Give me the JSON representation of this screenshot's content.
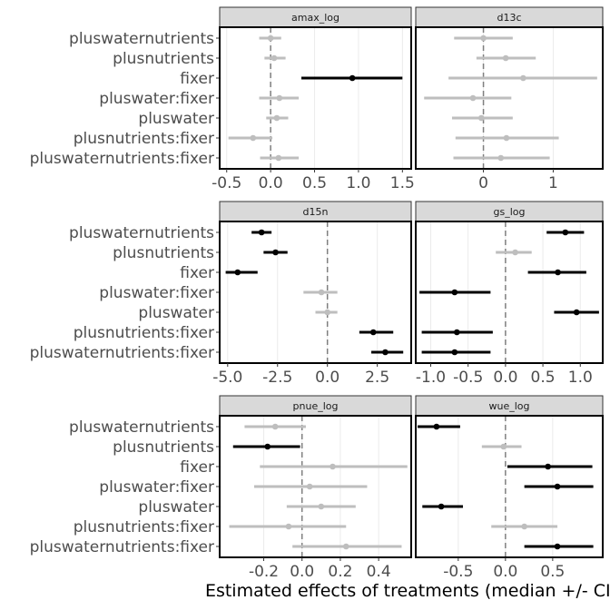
{
  "chart_data": {
    "type": "forest",
    "xlabel": "Estimated effects of treatments (median +/- CI)",
    "ylabel": "",
    "categories": [
      "pluswaternutrients",
      "plusnutrients",
      "fixer",
      "pluswater:fixer",
      "pluswater",
      "plusnutrients:fixer",
      "pluswaternutrients:fixer"
    ],
    "colors": {
      "significant": "#000000",
      "not_significant": "#bebebe",
      "zero_line": "#7f7f7f",
      "strip_fill": "#d9d9d9"
    },
    "panels": [
      {
        "name": "amax_log",
        "xlim": [
          -0.58,
          1.6
        ],
        "xticks": [
          -0.5,
          0.0,
          0.5,
          1.0,
          1.5
        ],
        "xtick_labels": [
          "-0.5",
          "0.0",
          "0.5",
          "1.0",
          "1.5"
        ],
        "estimates": [
          {
            "term": "pluswaternutrients",
            "median": 0.0,
            "lower": -0.13,
            "upper": 0.12,
            "significant": false
          },
          {
            "term": "plusnutrients",
            "median": 0.04,
            "lower": -0.07,
            "upper": 0.17,
            "significant": false
          },
          {
            "term": "fixer",
            "median": 0.93,
            "lower": 0.35,
            "upper": 1.5,
            "significant": true
          },
          {
            "term": "pluswater:fixer",
            "median": 0.1,
            "lower": -0.13,
            "upper": 0.32,
            "significant": false
          },
          {
            "term": "pluswater",
            "median": 0.07,
            "lower": -0.05,
            "upper": 0.2,
            "significant": false
          },
          {
            "term": "plusnutrients:fixer",
            "median": -0.2,
            "lower": -0.48,
            "upper": 0.02,
            "significant": false
          },
          {
            "term": "pluswaternutrients:fixer",
            "median": 0.09,
            "lower": -0.12,
            "upper": 0.32,
            "significant": false
          }
        ]
      },
      {
        "name": "d13c",
        "xlim": [
          -0.97,
          1.71
        ],
        "xticks": [
          0,
          1
        ],
        "xtick_labels": [
          "0",
          "1"
        ],
        "estimates": [
          {
            "term": "pluswaternutrients",
            "median": 0.0,
            "lower": -0.42,
            "upper": 0.42,
            "significant": false
          },
          {
            "term": "plusnutrients",
            "median": 0.32,
            "lower": -0.1,
            "upper": 0.75,
            "significant": false
          },
          {
            "term": "fixer",
            "median": 0.57,
            "lower": -0.5,
            "upper": 1.63,
            "significant": false
          },
          {
            "term": "pluswater:fixer",
            "median": -0.15,
            "lower": -0.85,
            "upper": 0.4,
            "significant": false
          },
          {
            "term": "pluswater",
            "median": -0.03,
            "lower": -0.45,
            "upper": 0.42,
            "significant": false
          },
          {
            "term": "plusnutrients:fixer",
            "median": 0.33,
            "lower": -0.4,
            "upper": 1.08,
            "significant": false
          },
          {
            "term": "pluswaternutrients:fixer",
            "median": 0.25,
            "lower": -0.43,
            "upper": 0.95,
            "significant": false
          }
        ]
      },
      {
        "name": "d15n",
        "xlim": [
          -5.4,
          4.2
        ],
        "xticks": [
          -5.0,
          -2.5,
          0.0,
          2.5
        ],
        "xtick_labels": [
          "-5.0",
          "-2.5",
          "0.0",
          "2.5"
        ],
        "estimates": [
          {
            "term": "pluswaternutrients",
            "median": -3.3,
            "lower": -3.8,
            "upper": -2.8,
            "significant": true
          },
          {
            "term": "plusnutrients",
            "median": -2.6,
            "lower": -3.2,
            "upper": -2.0,
            "significant": true
          },
          {
            "term": "fixer",
            "median": -4.5,
            "lower": -5.1,
            "upper": -3.5,
            "significant": true
          },
          {
            "term": "pluswater:fixer",
            "median": -0.3,
            "lower": -1.2,
            "upper": 0.5,
            "significant": false
          },
          {
            "term": "pluswater",
            "median": 0.0,
            "lower": -0.6,
            "upper": 0.5,
            "significant": false
          },
          {
            "term": "plusnutrients:fixer",
            "median": 2.3,
            "lower": 1.6,
            "upper": 3.3,
            "significant": true
          },
          {
            "term": "pluswaternutrients:fixer",
            "median": 2.9,
            "lower": 2.2,
            "upper": 3.8,
            "significant": true
          }
        ]
      },
      {
        "name": "gs_log",
        "xlim": [
          -1.2,
          1.3
        ],
        "xticks": [
          -1.0,
          -0.5,
          0.0,
          0.5,
          1.0
        ],
        "xtick_labels": [
          "-1.0",
          "-0.5",
          "0.0",
          "0.5",
          "1.0"
        ],
        "estimates": [
          {
            "term": "pluswaternutrients",
            "median": 0.8,
            "lower": 0.55,
            "upper": 1.05,
            "significant": true
          },
          {
            "term": "plusnutrients",
            "median": 0.13,
            "lower": -0.13,
            "upper": 0.35,
            "significant": false
          },
          {
            "term": "fixer",
            "median": 0.7,
            "lower": 0.3,
            "upper": 1.08,
            "significant": true
          },
          {
            "term": "pluswater:fixer",
            "median": -0.68,
            "lower": -1.15,
            "upper": -0.2,
            "significant": true
          },
          {
            "term": "pluswater",
            "median": 0.95,
            "lower": 0.65,
            "upper": 1.25,
            "significant": true
          },
          {
            "term": "plusnutrients:fixer",
            "median": -0.65,
            "lower": -1.12,
            "upper": -0.17,
            "significant": true
          },
          {
            "term": "pluswaternutrients:fixer",
            "median": -0.68,
            "lower": -1.12,
            "upper": -0.2,
            "significant": true
          }
        ]
      },
      {
        "name": "pnue_log",
        "xlim": [
          -0.43,
          0.57
        ],
        "xticks": [
          -0.2,
          0.0,
          0.2,
          0.4
        ],
        "xtick_labels": [
          "-0.2",
          "0.0",
          "0.2",
          "0.4"
        ],
        "estimates": [
          {
            "term": "pluswaternutrients",
            "median": -0.14,
            "lower": -0.3,
            "upper": 0.02,
            "significant": false
          },
          {
            "term": "plusnutrients",
            "median": -0.18,
            "lower": -0.36,
            "upper": -0.01,
            "significant": true
          },
          {
            "term": "fixer",
            "median": 0.16,
            "lower": -0.22,
            "upper": 0.55,
            "significant": false
          },
          {
            "term": "pluswater:fixer",
            "median": 0.04,
            "lower": -0.25,
            "upper": 0.34,
            "significant": false
          },
          {
            "term": "pluswater",
            "median": 0.1,
            "lower": -0.08,
            "upper": 0.28,
            "significant": false
          },
          {
            "term": "plusnutrients:fixer",
            "median": -0.07,
            "lower": -0.38,
            "upper": 0.23,
            "significant": false
          },
          {
            "term": "pluswaternutrients:fixer",
            "median": 0.23,
            "lower": -0.05,
            "upper": 0.52,
            "significant": false
          }
        ]
      },
      {
        "name": "wue_log",
        "xlim": [
          -0.95,
          1.03
        ],
        "xticks": [
          -0.5,
          0.0,
          0.5
        ],
        "xtick_labels": [
          "-0.5",
          "0.0",
          "0.5"
        ],
        "estimates": [
          {
            "term": "pluswaternutrients",
            "median": -0.73,
            "lower": -0.93,
            "upper": -0.48,
            "significant": true
          },
          {
            "term": "plusnutrients",
            "median": -0.02,
            "lower": -0.25,
            "upper": 0.17,
            "significant": false
          },
          {
            "term": "fixer",
            "median": 0.45,
            "lower": 0.02,
            "upper": 0.92,
            "significant": true
          },
          {
            "term": "pluswater:fixer",
            "median": 0.55,
            "lower": 0.2,
            "upper": 0.93,
            "significant": true
          },
          {
            "term": "pluswater",
            "median": -0.68,
            "lower": -0.88,
            "upper": -0.45,
            "significant": true
          },
          {
            "term": "plusnutrients:fixer",
            "median": 0.2,
            "lower": -0.15,
            "upper": 0.55,
            "significant": false
          },
          {
            "term": "pluswaternutrients:fixer",
            "median": 0.55,
            "lower": 0.2,
            "upper": 0.93,
            "significant": true
          }
        ]
      }
    ]
  }
}
